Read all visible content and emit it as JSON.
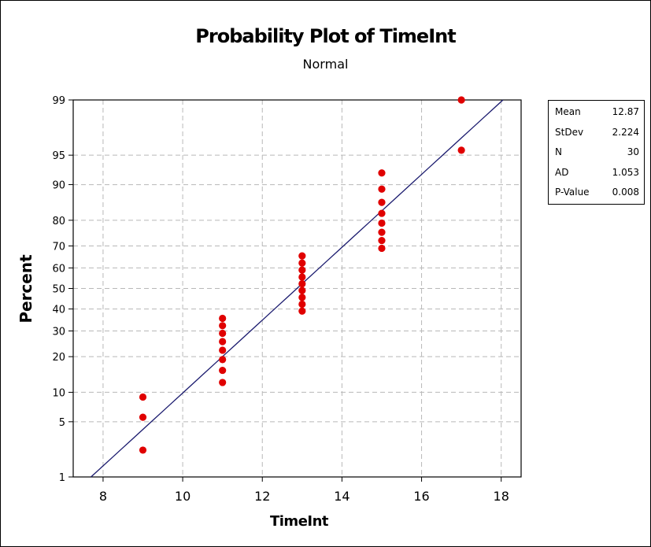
{
  "chart_data": {
    "type": "scatter",
    "title": "Probability Plot of TimeInt",
    "subtitle": "Normal",
    "xlabel": "TimeInt",
    "ylabel": "Percent",
    "xlim": [
      7.25,
      18.5
    ],
    "x_ticks": [
      "8",
      "10",
      "12",
      "14",
      "16",
      "18"
    ],
    "x_tick_values": [
      8,
      10,
      12,
      14,
      16,
      18
    ],
    "y_scale": "normal-probability",
    "ylim": [
      1,
      99
    ],
    "y_ticks": [
      "1",
      "5",
      "10",
      "20",
      "30",
      "40",
      "50",
      "60",
      "70",
      "80",
      "90",
      "95",
      "99"
    ],
    "y_tick_values": [
      1,
      5,
      10,
      20,
      30,
      40,
      50,
      60,
      70,
      80,
      90,
      95,
      99
    ],
    "grid": true,
    "points": [
      {
        "x": 9,
        "y": 2.3
      },
      {
        "x": 9,
        "y": 5.6
      },
      {
        "x": 9,
        "y": 9.0
      },
      {
        "x": 11,
        "y": 12.3
      },
      {
        "x": 11,
        "y": 15.6
      },
      {
        "x": 11,
        "y": 19.0
      },
      {
        "x": 11,
        "y": 22.3
      },
      {
        "x": 11,
        "y": 25.6
      },
      {
        "x": 11,
        "y": 29.0
      },
      {
        "x": 11,
        "y": 32.3
      },
      {
        "x": 11,
        "y": 35.6
      },
      {
        "x": 13,
        "y": 39.0
      },
      {
        "x": 13,
        "y": 42.3
      },
      {
        "x": 13,
        "y": 45.6
      },
      {
        "x": 13,
        "y": 49.0
      },
      {
        "x": 13,
        "y": 52.3
      },
      {
        "x": 13,
        "y": 55.6
      },
      {
        "x": 13,
        "y": 59.0
      },
      {
        "x": 13,
        "y": 62.3
      },
      {
        "x": 13,
        "y": 65.6
      },
      {
        "x": 15,
        "y": 69.0
      },
      {
        "x": 15,
        "y": 72.3
      },
      {
        "x": 15,
        "y": 75.6
      },
      {
        "x": 15,
        "y": 79.0
      },
      {
        "x": 15,
        "y": 82.3
      },
      {
        "x": 15,
        "y": 85.6
      },
      {
        "x": 15,
        "y": 89.0
      },
      {
        "x": 15,
        "y": 92.3
      },
      {
        "x": 17,
        "y": 95.6
      },
      {
        "x": 17,
        "y": 99.0
      }
    ],
    "fit_line": {
      "mean": 12.87,
      "stdev": 2.224,
      "color": "#1a1a6e"
    },
    "marker_color": "#e00000",
    "grid_color": "#b8b8b8"
  },
  "stats": [
    {
      "label": "Mean",
      "value": "12.87"
    },
    {
      "label": "StDev",
      "value": "2.224"
    },
    {
      "label": "N",
      "value": "30"
    },
    {
      "label": "AD",
      "value": "1.053"
    },
    {
      "label": "P-Value",
      "value": "0.008"
    }
  ]
}
